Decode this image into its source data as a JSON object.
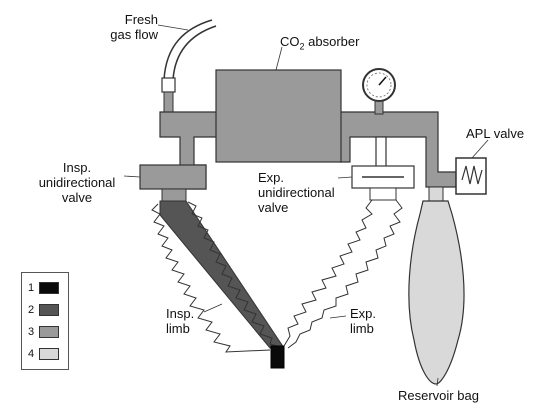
{
  "labels": {
    "fresh_gas_line1": "Fresh",
    "fresh_gas_line2": "gas flow",
    "co2_prefix": "CO",
    "co2_sub": "2",
    "co2_suffix": " absorber",
    "apl_valve": "APL valve",
    "insp_valve_line1": "Insp.",
    "insp_valve_line2": "unidirectional",
    "insp_valve_line3": "valve",
    "exp_valve_line1": "Exp.",
    "exp_valve_line2": "unidirectional",
    "exp_valve_line3": "valve",
    "insp_limb_line1": "Insp.",
    "insp_limb_line2": "limb",
    "exp_limb_line1": "Exp.",
    "exp_limb_line2": "limb",
    "reservoir_bag": "Reservoir bag"
  },
  "legend": [
    {
      "number": "1",
      "color": "#0a0a0a"
    },
    {
      "number": "2",
      "color": "#555555"
    },
    {
      "number": "3",
      "color": "#9a9a9a"
    },
    {
      "number": "4",
      "color": "#d9d9d9"
    }
  ],
  "colors": {
    "level1": "#0a0a0a",
    "level2": "#555555",
    "level3": "#9a9a9a",
    "level4": "#d9d9d9"
  }
}
